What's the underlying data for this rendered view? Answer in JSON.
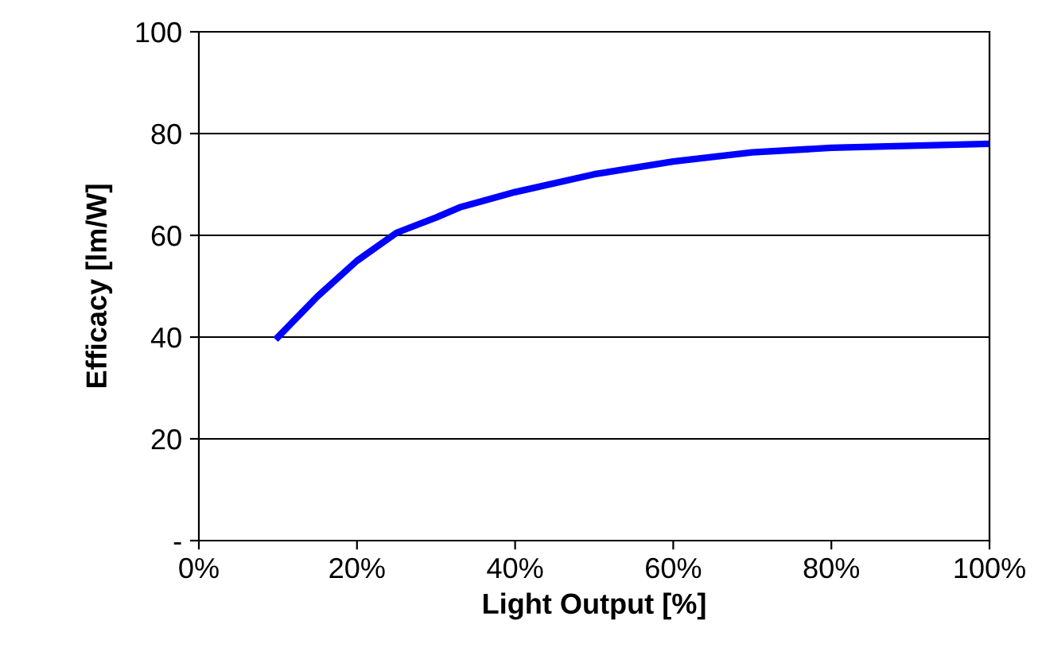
{
  "chart_data": {
    "type": "line",
    "xlabel": "Light Output [%]",
    "ylabel": "Efficacy [lm/W]",
    "x": [
      10,
      15,
      20,
      25,
      30,
      33,
      40,
      50,
      60,
      70,
      80,
      90,
      100
    ],
    "series": [
      {
        "color": "#0000ff",
        "values": [
          40,
          48,
          55,
          60.5,
          63.5,
          65.5,
          68.5,
          72,
          74.5,
          76.3,
          77.2,
          77.6,
          78
        ]
      }
    ],
    "xlim": [
      0,
      100
    ],
    "ylim": [
      0,
      100
    ],
    "xticks": [
      {
        "value": 0,
        "label": "0%"
      },
      {
        "value": 20,
        "label": "20%"
      },
      {
        "value": 40,
        "label": "40%"
      },
      {
        "value": 60,
        "label": "60%"
      },
      {
        "value": 80,
        "label": "80%"
      },
      {
        "value": 100,
        "label": "100%"
      }
    ],
    "yticks": [
      {
        "value": 0,
        "label": "-"
      },
      20,
      40,
      60,
      80,
      100
    ],
    "grid": "y",
    "legend": false,
    "marker": "none",
    "line_style": "solid"
  }
}
